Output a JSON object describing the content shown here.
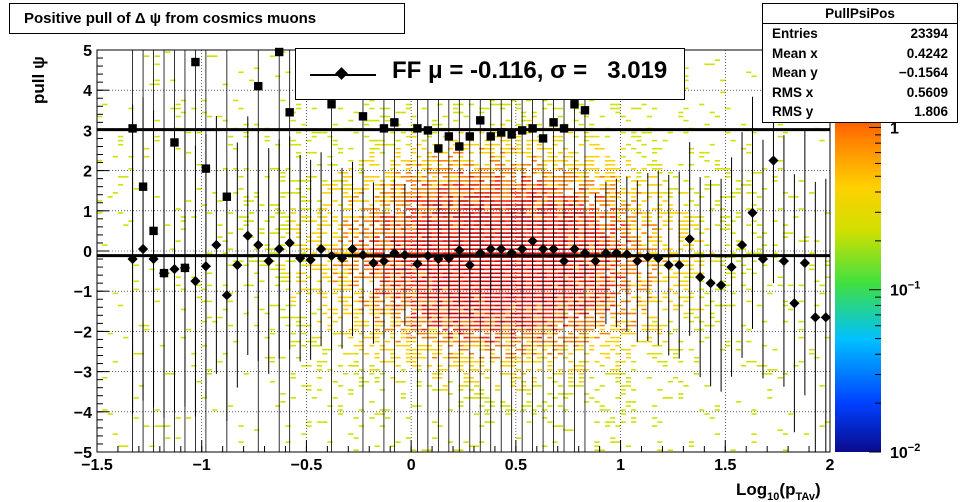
{
  "title": "Positive pull of Δ ψ from cosmics muons",
  "stats": {
    "name": "PullPsiPos",
    "rows": [
      {
        "label": "Entries",
        "value": "23394"
      },
      {
        "label": "Mean x",
        "value": "0.4242"
      },
      {
        "label": "Mean y",
        "value": "−0.1564"
      },
      {
        "label": "RMS x",
        "value": "0.5609"
      },
      {
        "label": "RMS y",
        "value": "1.806"
      }
    ]
  },
  "legend": {
    "text": "FF μ = -0.116, σ =   3.019"
  },
  "chart_data": {
    "type": "scatter",
    "x_title": "Log10(pTAv)",
    "y_title": "pull ψ",
    "xlim": [
      -1.5,
      2
    ],
    "ylim": [
      -5,
      5
    ],
    "x_ticks": [
      -1.5,
      -1,
      -0.5,
      0,
      0.5,
      1,
      1.5,
      2
    ],
    "x_tick_labels": [
      "−1.5",
      "−1",
      "−0.5",
      "0",
      "0.5",
      "1",
      "1.5",
      "2"
    ],
    "y_ticks": [
      -5,
      -4,
      -3,
      -2,
      -1,
      0,
      1,
      2,
      3,
      4,
      5
    ],
    "y_tick_labels": [
      "−5",
      "−4",
      "−3",
      "−2",
      "−1",
      "0",
      "1",
      "2",
      "3",
      "4",
      "5"
    ],
    "z_scale": "log",
    "z_ticks": [
      0.01,
      0.1,
      1
    ],
    "z_tick_labels": [
      "10−2",
      "10−1",
      "1"
    ],
    "grid": true,
    "hlines": [
      {
        "y": 3.019,
        "label": "σ"
      },
      {
        "y": -0.116,
        "label": "μ"
      }
    ],
    "series": [
      {
        "name": "mean",
        "marker": "diamond",
        "x": [
          -1.33,
          -1.28,
          -1.23,
          -1.18,
          -1.13,
          -1.08,
          -1.03,
          -0.98,
          -0.93,
          -0.88,
          -0.83,
          -0.78,
          -0.73,
          -0.68,
          -0.63,
          -0.58,
          -0.53,
          -0.48,
          -0.43,
          -0.38,
          -0.33,
          -0.28,
          -0.23,
          -0.18,
          -0.13,
          -0.08,
          -0.03,
          0.03,
          0.08,
          0.13,
          0.18,
          0.23,
          0.28,
          0.33,
          0.38,
          0.43,
          0.48,
          0.53,
          0.58,
          0.63,
          0.68,
          0.73,
          0.78,
          0.83,
          0.88,
          0.93,
          0.98,
          1.03,
          1.08,
          1.13,
          1.18,
          1.23,
          1.28,
          1.33,
          1.38,
          1.43,
          1.48,
          1.53,
          1.58,
          1.63,
          1.68,
          1.73,
          1.78,
          1.83,
          1.88,
          1.93,
          1.98
        ],
        "values": [
          -0.2,
          0.05,
          -0.2,
          -0.55,
          -0.45,
          -0.42,
          -0.75,
          -0.38,
          0.15,
          -1.1,
          -0.35,
          0.38,
          0.15,
          -0.25,
          0.05,
          0.2,
          -0.18,
          -0.22,
          0.05,
          -0.12,
          -0.18,
          0.05,
          -0.1,
          -0.3,
          -0.25,
          -0.05,
          -0.1,
          -0.32,
          -0.12,
          -0.2,
          -0.18,
          0.02,
          -0.35,
          -0.05,
          0.05,
          0.05,
          -0.05,
          0.05,
          0.25,
          0.05,
          0.05,
          -0.25,
          0.05,
          -0.05,
          -0.25,
          -0.05,
          -0.05,
          -0.08,
          -0.25,
          -0.15,
          -0.18,
          -0.35,
          -0.35,
          0.3,
          -0.65,
          -0.8,
          -0.85,
          -0.4,
          0.15,
          0.95,
          -0.2,
          2.25,
          -0.25,
          -1.3,
          -0.3,
          -1.65,
          -1.65
        ]
      },
      {
        "name": "sigma",
        "marker": "square",
        "x": [
          -1.33,
          -1.28,
          -1.23,
          -1.18,
          -1.13,
          -1.08,
          -1.03,
          -0.98,
          -0.88,
          -0.73,
          -0.63,
          -0.58,
          -0.38,
          -0.23,
          -0.13,
          -0.08,
          0.03,
          0.08,
          0.13,
          0.18,
          0.23,
          0.28,
          0.33,
          0.38,
          0.43,
          0.48,
          0.53,
          0.58,
          0.63,
          0.68,
          0.73,
          0.78,
          0.83
        ],
        "values": [
          3.05,
          1.6,
          0.5,
          -0.55,
          2.7,
          -0.42,
          4.7,
          2.05,
          1.35,
          4.1,
          4.95,
          3.45,
          3.65,
          3.35,
          3.05,
          3.2,
          3.05,
          3.0,
          2.55,
          2.85,
          2.6,
          2.85,
          3.25,
          2.85,
          2.95,
          2.9,
          3.0,
          3.05,
          2.8,
          3.2,
          3.05,
          3.65,
          3.5
        ]
      }
    ]
  },
  "colors": {
    "palette": [
      "#0a0a8c",
      "#0040ff",
      "#00c0ff",
      "#40e040",
      "#d0e000",
      "#ffd000",
      "#ff8000",
      "#ff2000",
      "#d00000"
    ],
    "marker": "#000000",
    "frame": "#000000"
  }
}
